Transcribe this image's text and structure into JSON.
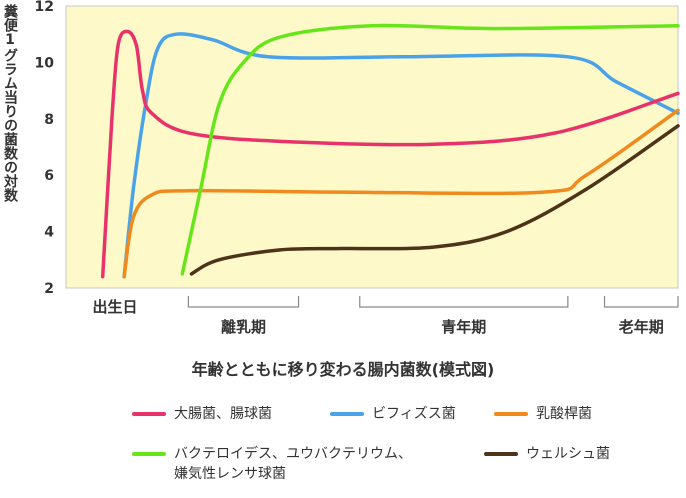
{
  "chart_data": {
    "type": "line",
    "title": "年齢とともに移り変わる腸内菌数(模式図)",
    "ylabel": "糞便1グラム当りの菌数の対数",
    "ylim": [
      2,
      12
    ],
    "yticks": [
      "2",
      "4",
      "6",
      "8",
      "10",
      "12"
    ],
    "xlim": [
      0,
      100
    ],
    "grid": false,
    "background": "#fdf9c9",
    "stages": [
      {
        "label": "出生日",
        "bracket": false,
        "center": 8
      },
      {
        "label": "離乳期",
        "bracket": true,
        "from": 20,
        "to": 38
      },
      {
        "label": "青年期",
        "bracket": true,
        "from": 48,
        "to": 82
      },
      {
        "label": "老年期",
        "bracket": true,
        "from": 88,
        "to": 100
      }
    ],
    "series": [
      {
        "name": "大腸菌、腸球菌",
        "color": "#e8336a",
        "points": [
          [
            6,
            2.4
          ],
          [
            7.5,
            8
          ],
          [
            8.5,
            10.6
          ],
          [
            10,
            11.1
          ],
          [
            11.5,
            10.6
          ],
          [
            12.5,
            9
          ],
          [
            14,
            8.2
          ],
          [
            20,
            7.5
          ],
          [
            35,
            7.2
          ],
          [
            60,
            7.1
          ],
          [
            80,
            7.5
          ],
          [
            100,
            8.9
          ]
        ]
      },
      {
        "name": "ビフィズス菌",
        "color": "#4aa3e8",
        "points": [
          [
            9.5,
            2.4
          ],
          [
            11,
            5.5
          ],
          [
            13,
            8.5
          ],
          [
            15,
            10.5
          ],
          [
            18,
            11
          ],
          [
            24,
            10.8
          ],
          [
            33,
            10.2
          ],
          [
            55,
            10.2
          ],
          [
            82,
            10.2
          ],
          [
            90,
            9.3
          ],
          [
            100,
            8.2
          ]
        ]
      },
      {
        "name": "乳酸桿菌",
        "color": "#f08a1c",
        "points": [
          [
            9.5,
            2.4
          ],
          [
            11,
            4.5
          ],
          [
            14,
            5.3
          ],
          [
            20,
            5.45
          ],
          [
            45,
            5.4
          ],
          [
            78,
            5.4
          ],
          [
            85,
            6
          ],
          [
            100,
            8.3
          ]
        ]
      },
      {
        "name": "バクテロイデス、ユウバクテリウム、\n嫌気性レンサ球菌",
        "color": "#66e619",
        "points": [
          [
            19,
            2.5
          ],
          [
            22,
            5.5
          ],
          [
            25,
            8.5
          ],
          [
            29,
            10
          ],
          [
            35,
            10.9
          ],
          [
            50,
            11.3
          ],
          [
            70,
            11.2
          ],
          [
            100,
            11.3
          ]
        ]
      },
      {
        "name": "ウェルシュ菌",
        "color": "#4d3319",
        "points": [
          [
            20.5,
            2.5
          ],
          [
            25,
            3
          ],
          [
            35,
            3.35
          ],
          [
            45,
            3.4
          ],
          [
            60,
            3.45
          ],
          [
            72,
            4
          ],
          [
            85,
            5.5
          ],
          [
            100,
            7.75
          ]
        ]
      }
    ]
  }
}
